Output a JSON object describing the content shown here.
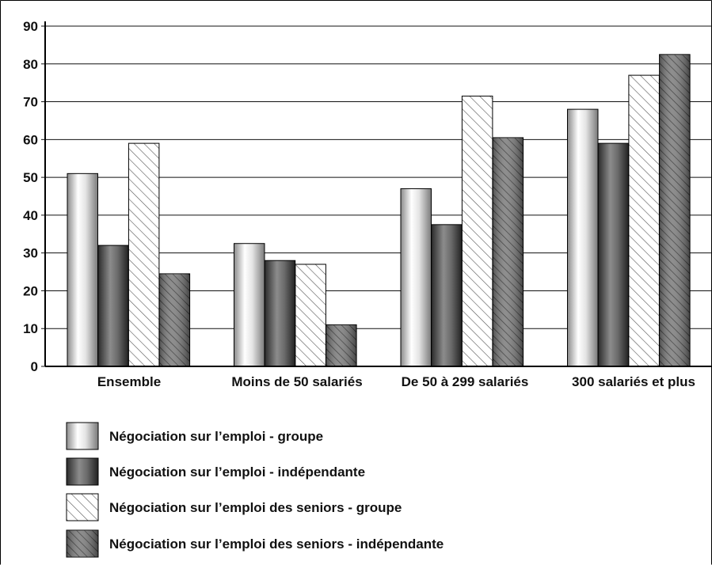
{
  "chart_data": {
    "type": "bar",
    "title": "",
    "xlabel": "",
    "ylabel": "",
    "ylim": [
      0,
      90
    ],
    "yticks": [
      0,
      10,
      20,
      30,
      40,
      50,
      60,
      70,
      80,
      90
    ],
    "grid": true,
    "legend_position": "bottom-left",
    "categories": [
      "Ensemble",
      "Moins de 50 salariés",
      "De 50 à 299 salariés",
      "300 salariés et plus"
    ],
    "series": [
      {
        "name": "Négociation sur l’emploi - groupe",
        "values": [
          51,
          32.5,
          47,
          68
        ],
        "style": "light-gradient"
      },
      {
        "name": "Négociation sur l’emploi - indépendante",
        "values": [
          32,
          28,
          37.5,
          59
        ],
        "style": "dark-gradient"
      },
      {
        "name": "Négociation sur l’emploi des seniors - groupe",
        "values": [
          59,
          27,
          71.5,
          77
        ],
        "style": "light-hatched"
      },
      {
        "name": "Négociation sur l’emploi des seniors - indépendante",
        "values": [
          24.5,
          11,
          60.5,
          82.5
        ],
        "style": "dark-hatched"
      }
    ]
  }
}
